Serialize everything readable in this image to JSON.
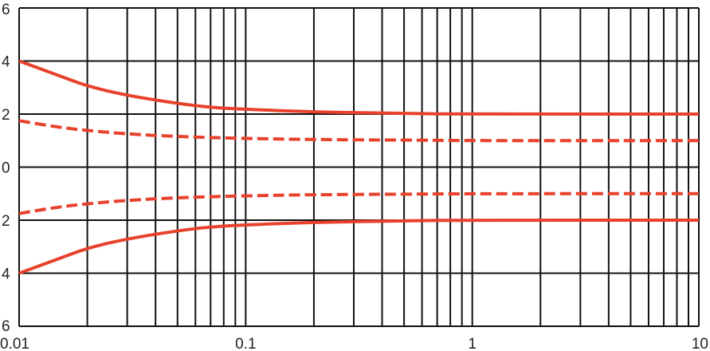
{
  "chart_data": {
    "type": "line",
    "x_scale": "log",
    "xlim": [
      0.01,
      10
    ],
    "ylim": [
      -6,
      6
    ],
    "grid": true,
    "legend": "none",
    "title": "",
    "xlabel": "",
    "ylabel": "",
    "x_ticks": [
      {
        "value": 0.01,
        "label": "0.01"
      },
      {
        "value": 0.1,
        "label": "0.1"
      },
      {
        "value": 1,
        "label": "1"
      },
      {
        "value": 10,
        "label": "10"
      }
    ],
    "y_ticks": [
      {
        "value": 6,
        "label": "6"
      },
      {
        "value": 4,
        "label": "4"
      },
      {
        "value": 2,
        "label": "2"
      },
      {
        "value": 0,
        "label": "0"
      },
      {
        "value": -2,
        "label": "2"
      },
      {
        "value": -4,
        "label": "4"
      },
      {
        "value": -6,
        "label": "6"
      }
    ],
    "series_color": "#e8412c",
    "series": [
      {
        "style": "solid",
        "points": [
          [
            0.01,
            4.0
          ],
          [
            0.015,
            3.45
          ],
          [
            0.02,
            3.05
          ],
          [
            0.03,
            2.7
          ],
          [
            0.05,
            2.4
          ],
          [
            0.07,
            2.25
          ],
          [
            0.1,
            2.18
          ],
          [
            0.2,
            2.08
          ],
          [
            0.5,
            2.02
          ],
          [
            1,
            2.0
          ],
          [
            10,
            2.0
          ]
        ]
      },
      {
        "style": "dashed",
        "points": [
          [
            0.01,
            1.75
          ],
          [
            0.015,
            1.5
          ],
          [
            0.02,
            1.38
          ],
          [
            0.03,
            1.25
          ],
          [
            0.05,
            1.15
          ],
          [
            0.1,
            1.08
          ],
          [
            0.2,
            1.04
          ],
          [
            0.5,
            1.02
          ],
          [
            1,
            1.0
          ],
          [
            10,
            1.0
          ]
        ]
      },
      {
        "style": "dashed",
        "points": [
          [
            0.01,
            -1.75
          ],
          [
            0.015,
            -1.5
          ],
          [
            0.02,
            -1.38
          ],
          [
            0.03,
            -1.25
          ],
          [
            0.05,
            -1.15
          ],
          [
            0.1,
            -1.08
          ],
          [
            0.2,
            -1.04
          ],
          [
            0.5,
            -1.02
          ],
          [
            1,
            -1.0
          ],
          [
            10,
            -1.0
          ]
        ]
      },
      {
        "style": "solid",
        "points": [
          [
            0.01,
            -4.0
          ],
          [
            0.015,
            -3.45
          ],
          [
            0.02,
            -3.05
          ],
          [
            0.03,
            -2.7
          ],
          [
            0.05,
            -2.4
          ],
          [
            0.07,
            -2.25
          ],
          [
            0.1,
            -2.18
          ],
          [
            0.2,
            -2.08
          ],
          [
            0.5,
            -2.02
          ],
          [
            1,
            -2.0
          ],
          [
            10,
            -2.0
          ]
        ]
      }
    ]
  }
}
